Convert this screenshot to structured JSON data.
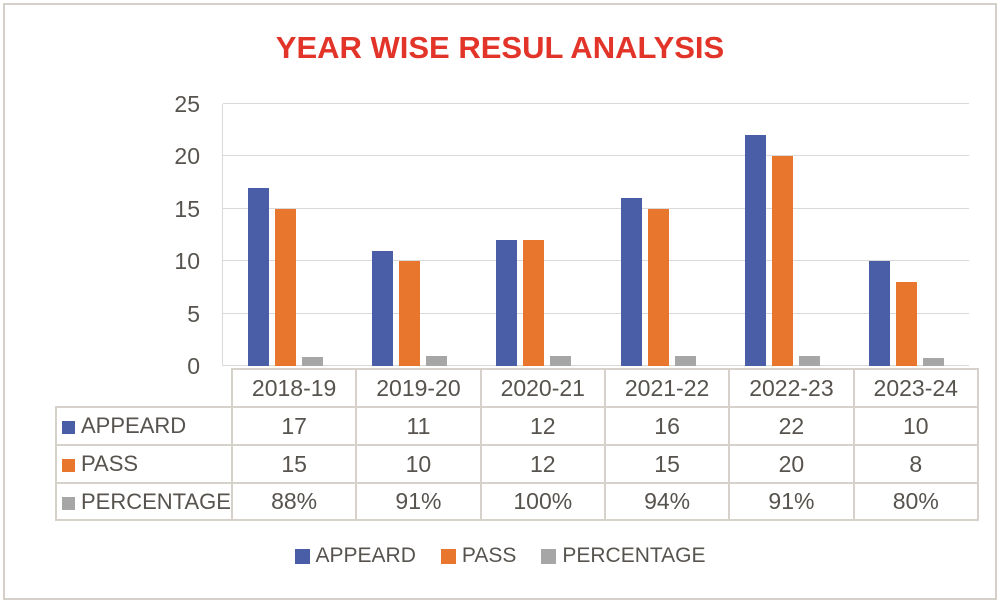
{
  "window": {
    "background": "#FFFFFF",
    "frame_border_color": "#D5CFC9"
  },
  "chart_data": {
    "type": "bar",
    "title": "YEAR WISE RESUL ANALYSIS",
    "title_color": "#E23429",
    "categories": [
      "2018-19",
      "2019-20",
      "2020-21",
      "2021-22",
      "2022-23",
      "2023-24"
    ],
    "series": [
      {
        "name": "APPEARD",
        "color": "#4A5EA8",
        "values": [
          17,
          11,
          12,
          16,
          22,
          10
        ],
        "display": [
          "17",
          "11",
          "12",
          "16",
          "22",
          "10"
        ]
      },
      {
        "name": "PASS",
        "color": "#E8762C",
        "values": [
          15,
          10,
          12,
          15,
          20,
          8
        ],
        "display": [
          "15",
          "10",
          "12",
          "15",
          "20",
          "8"
        ]
      },
      {
        "name": "PERCENTAGE",
        "color": "#A6A6A6",
        "values": [
          0.88,
          0.91,
          1.0,
          0.94,
          0.91,
          0.8
        ],
        "display": [
          "88%",
          "91%",
          "100%",
          "94%",
          "91%",
          "80%"
        ]
      }
    ],
    "xlabel": "",
    "ylabel": "",
    "ylim": [
      0,
      25
    ],
    "ytick_step": 5,
    "yticks": [
      "0",
      "5",
      "10",
      "15",
      "20",
      "25"
    ],
    "grid": true,
    "gridline_color": "#D9D9D9",
    "axis_text_color": "#57534E",
    "table_text_color": "#57534E",
    "table_border_color": "#D6D1CB",
    "legend_position": "bottom",
    "data_table_shown": true
  }
}
